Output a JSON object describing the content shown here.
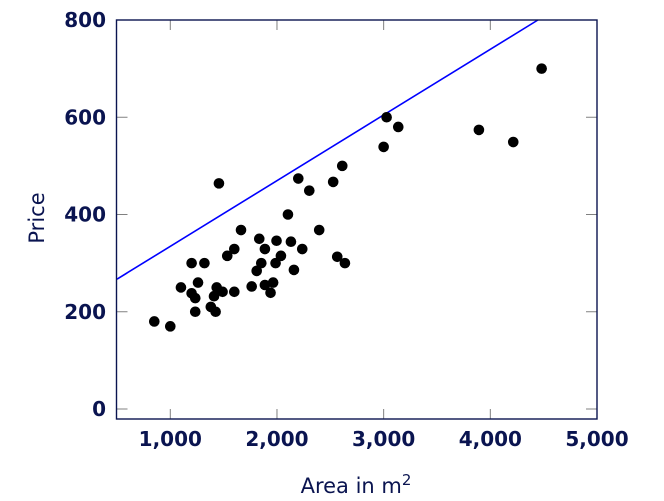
{
  "chart_data": {
    "type": "scatter",
    "title": "",
    "xlabel": "Area in m",
    "xlabel_superscript": "2",
    "ylabel": "Price",
    "xlim": [
      500,
      5000
    ],
    "ylim": [
      -20,
      800
    ],
    "xticks": [
      1000,
      2000,
      3000,
      4000,
      5000
    ],
    "xtick_labels": [
      "1,000",
      "2,000",
      "3,000",
      "4,000",
      "5,000"
    ],
    "yticks": [
      0,
      200,
      400,
      600,
      800
    ],
    "ytick_labels": [
      "0",
      "200",
      "400",
      "600",
      "800"
    ],
    "grid": false,
    "legend": null,
    "colors": {
      "points": "#000000",
      "line": "#0000ff",
      "axes": "#0a1450",
      "ticks": "#808080"
    },
    "series": [
      {
        "name": "data",
        "kind": "scatter",
        "points": [
          [
            850,
            180
          ],
          [
            1000,
            170
          ],
          [
            1100,
            250
          ],
          [
            1200,
            300
          ],
          [
            1320,
            300
          ],
          [
            1260,
            260
          ],
          [
            1200,
            238
          ],
          [
            1234,
            228
          ],
          [
            1234,
            200
          ],
          [
            1380,
            210
          ],
          [
            1425,
            200
          ],
          [
            1410,
            232
          ],
          [
            1435,
            250
          ],
          [
            1490,
            241
          ],
          [
            1600,
            241
          ],
          [
            1534,
            315
          ],
          [
            1600,
            329
          ],
          [
            1456,
            464
          ],
          [
            1663,
            368
          ],
          [
            1763,
            252
          ],
          [
            1810,
            284
          ],
          [
            1834,
            350
          ],
          [
            1853,
            300
          ],
          [
            1887,
            329
          ],
          [
            1887,
            255
          ],
          [
            1940,
            239
          ],
          [
            1964,
            260
          ],
          [
            1987,
            300
          ],
          [
            1996,
            346
          ],
          [
            2037,
            315
          ],
          [
            2103,
            400
          ],
          [
            2131,
            344
          ],
          [
            2159,
            286
          ],
          [
            2200,
            474
          ],
          [
            2237,
            329
          ],
          [
            2303,
            449
          ],
          [
            2396,
            368
          ],
          [
            2527,
            467
          ],
          [
            2565,
            313
          ],
          [
            2612,
            500
          ],
          [
            2637,
            300
          ],
          [
            3000,
            539
          ],
          [
            3028,
            600
          ],
          [
            3137,
            580
          ],
          [
            3893,
            574
          ],
          [
            4215,
            549
          ],
          [
            4481,
            700
          ]
        ]
      },
      {
        "name": "fit",
        "kind": "line",
        "intercept": 199.5,
        "slope": 0.135,
        "endpoints": [
          [
            500,
            267
          ],
          [
            4446,
            800
          ]
        ]
      }
    ]
  }
}
